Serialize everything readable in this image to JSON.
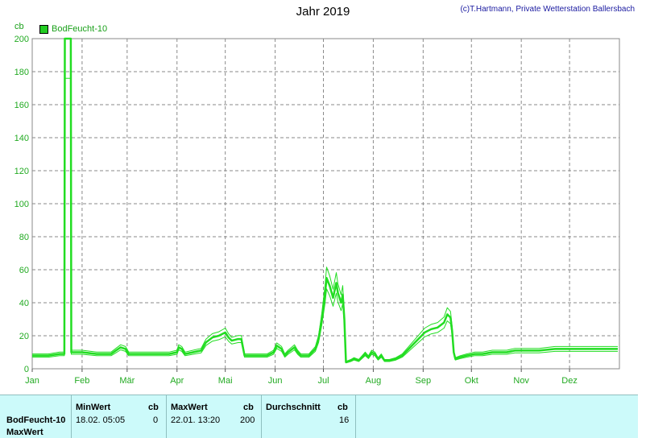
{
  "header": {
    "title": "Jahr 2019",
    "credit": "(c)T.Hartmann, Private Wetterstation Ballersbach",
    "unit": "cb"
  },
  "colors": {
    "series": "#22dd22",
    "axis_text": "#22aa22",
    "grid": "#888888"
  },
  "chart_data": {
    "type": "line",
    "title": "Jahr 2019",
    "ylabel": "cb",
    "ylim": [
      0,
      200
    ],
    "yticks": [
      0,
      20,
      40,
      60,
      80,
      100,
      120,
      140,
      160,
      180,
      200
    ],
    "xticks": [
      "Jan",
      "Feb",
      "Mär",
      "Apr",
      "Mai",
      "Jun",
      "Jul",
      "Aug",
      "Sep",
      "Okt",
      "Nov",
      "Dez"
    ],
    "grid": true,
    "legend_position": "top-left",
    "series": [
      {
        "name": "BodFeucht-10",
        "x_unit": "day of year",
        "points": [
          [
            0,
            8
          ],
          [
            10,
            8
          ],
          [
            17,
            9
          ],
          [
            20,
            9
          ],
          [
            20.3,
            200
          ],
          [
            23,
            200
          ],
          [
            24,
            200
          ],
          [
            24.3,
            10
          ],
          [
            31,
            10
          ],
          [
            40,
            9
          ],
          [
            45,
            9
          ],
          [
            49,
            9
          ],
          [
            52,
            11
          ],
          [
            55,
            13
          ],
          [
            58,
            12
          ],
          [
            60,
            9
          ],
          [
            70,
            9
          ],
          [
            78,
            9
          ],
          [
            85,
            9
          ],
          [
            90,
            10
          ],
          [
            91,
            13
          ],
          [
            93,
            12
          ],
          [
            95,
            9
          ],
          [
            100,
            10
          ],
          [
            105,
            11
          ],
          [
            108,
            16
          ],
          [
            112,
            19
          ],
          [
            116,
            20
          ],
          [
            120,
            22
          ],
          [
            122,
            19
          ],
          [
            124,
            17
          ],
          [
            128,
            18
          ],
          [
            130,
            18
          ],
          [
            132,
            8
          ],
          [
            140,
            8
          ],
          [
            146,
            8
          ],
          [
            150,
            10
          ],
          [
            152,
            14
          ],
          [
            155,
            12
          ],
          [
            157,
            8
          ],
          [
            159,
            10
          ],
          [
            163,
            13
          ],
          [
            165,
            10
          ],
          [
            167,
            8
          ],
          [
            172,
            8
          ],
          [
            176,
            12
          ],
          [
            178,
            18
          ],
          [
            180,
            30
          ],
          [
            182,
            45
          ],
          [
            183,
            55
          ],
          [
            185,
            50
          ],
          [
            187,
            43
          ],
          [
            189,
            52
          ],
          [
            190,
            46
          ],
          [
            192,
            40
          ],
          [
            193,
            45
          ],
          [
            194,
            30
          ],
          [
            195,
            4
          ],
          [
            198,
            5
          ],
          [
            200,
            6
          ],
          [
            203,
            5
          ],
          [
            205,
            7
          ],
          [
            207,
            9
          ],
          [
            209,
            7
          ],
          [
            211,
            10
          ],
          [
            213,
            9
          ],
          [
            215,
            6
          ],
          [
            217,
            8
          ],
          [
            219,
            5
          ],
          [
            222,
            5
          ],
          [
            226,
            6
          ],
          [
            230,
            8
          ],
          [
            234,
            12
          ],
          [
            238,
            16
          ],
          [
            241,
            19
          ],
          [
            244,
            22
          ],
          [
            248,
            24
          ],
          [
            252,
            25
          ],
          [
            256,
            28
          ],
          [
            258,
            33
          ],
          [
            260,
            31
          ],
          [
            261,
            23
          ],
          [
            262,
            10
          ],
          [
            263,
            6
          ],
          [
            266,
            7
          ],
          [
            270,
            8
          ],
          [
            275,
            9
          ],
          [
            280,
            9
          ],
          [
            286,
            10
          ],
          [
            290,
            10
          ],
          [
            295,
            10
          ],
          [
            300,
            11
          ],
          [
            305,
            11
          ],
          [
            315,
            11
          ],
          [
            325,
            12
          ],
          [
            335,
            12
          ],
          [
            345,
            12
          ],
          [
            355,
            12
          ],
          [
            364,
            12
          ]
        ]
      }
    ]
  },
  "table": {
    "columns": [
      {
        "label": "MinWert",
        "unit": "cb"
      },
      {
        "label": "MaxWert",
        "unit": "cb"
      },
      {
        "label": "Durchschnitt",
        "unit": "cb"
      }
    ],
    "rows": [
      {
        "label": "BodFeucht-10",
        "min_time": "18.02.  05:05",
        "min_value": "0",
        "max_time": "22.01.  13:20",
        "max_value": "200",
        "avg_value": "16"
      },
      {
        "label": "MaxWert"
      }
    ]
  }
}
